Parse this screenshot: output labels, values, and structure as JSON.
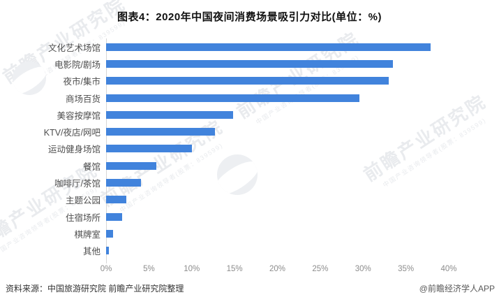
{
  "title": "图表4：2020年中国夜间消费场景吸引力对比(单位：%)",
  "chart_data": {
    "type": "bar",
    "orientation": "horizontal",
    "title": "图表4：2020年中国夜间消费场景吸引力对比(单位：%)",
    "categories": [
      "文化艺术场馆",
      "电影院/剧场",
      "夜市/集市",
      "商场百货",
      "美容按摩馆",
      "KTV/夜店/网吧",
      "运动健身场馆",
      "餐馆",
      "咖啡厅/茶馆",
      "主题公园",
      "住宿场所",
      "棋牌室",
      "其他"
    ],
    "values": [
      37.9,
      33.5,
      33.0,
      29.6,
      14.8,
      12.7,
      10.0,
      5.9,
      4.1,
      2.4,
      1.9,
      0.8,
      0.3
    ],
    "unit": "%",
    "xlabel": "",
    "ylabel": "",
    "xlim": [
      0,
      40
    ],
    "tick_labels": [
      "0%",
      "5%",
      "10%",
      "15%",
      "20%",
      "25%",
      "30%",
      "35%",
      "40%"
    ],
    "grid": false,
    "legend": false,
    "bar_color": "#4183DC",
    "axis_color": "#d6d6d6"
  },
  "footer": {
    "source": "资料来源：中国旅游研究院 前瞻产业研究院整理",
    "credit": "@前瞻经济学人APP"
  },
  "watermark": {
    "text": "前瞻产业研究院",
    "subtext": "中国产业咨询领导者(股票：839599)",
    "color": "#e9ebee",
    "circle_color": "#edeff2"
  }
}
